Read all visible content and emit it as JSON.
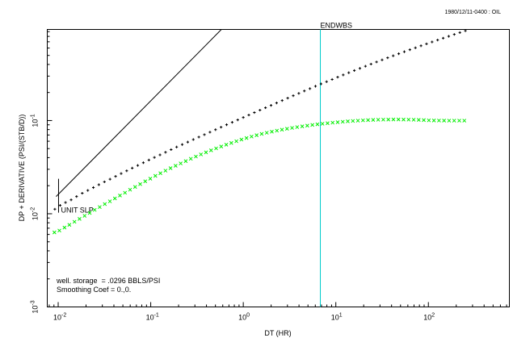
{
  "header": {
    "id_label": "1980/12/11-0400 : OIL"
  },
  "chart_data": {
    "type": "scatter",
    "title": "",
    "xlabel": "DT (HR)",
    "ylabel": "DP + DERIVATIVE (PSI/(STB/D))",
    "x_scale": "log",
    "y_scale": "log",
    "xlim": [
      0.00762,
      750
    ],
    "ylim": [
      0.001,
      0.95
    ],
    "x_ticks": [
      {
        "value": 0.01,
        "base": "10",
        "exp": "-2"
      },
      {
        "value": 0.1,
        "base": "10",
        "exp": "-1"
      },
      {
        "value": 1,
        "base": "10",
        "exp": "0"
      },
      {
        "value": 10,
        "base": "10",
        "exp": "1"
      },
      {
        "value": 100,
        "base": "10",
        "exp": "2"
      }
    ],
    "y_ticks": [
      {
        "value": 0.001,
        "base": "10",
        "exp": "-3"
      },
      {
        "value": 0.01,
        "base": "10",
        "exp": "-2"
      },
      {
        "value": 0.1,
        "base": "10",
        "exp": "-1"
      }
    ],
    "grid": false,
    "series": [
      {
        "marker": "+",
        "color": "#000000",
        "x": [
          0.0092,
          0.0105,
          0.012,
          0.0138,
          0.0158,
          0.0182,
          0.0209,
          0.024,
          0.0275,
          0.0316,
          0.0363,
          0.0417,
          0.0479,
          0.055,
          0.0631,
          0.0724,
          0.0832,
          0.0955,
          0.1096,
          0.1259,
          0.1445,
          0.166,
          0.1905,
          0.2188,
          0.2512,
          0.2884,
          0.3311,
          0.3802,
          0.4365,
          0.5012,
          0.5754,
          0.6607,
          0.7586,
          0.871,
          1,
          1.148,
          1.318,
          1.514,
          1.738,
          1.995,
          2.291,
          2.63,
          3.02,
          3.467,
          3.981,
          4.571,
          5.248,
          6.026,
          6.918,
          7.943,
          9.12,
          10.47,
          12.02,
          13.8,
          15.85,
          18.2,
          20.89,
          23.99,
          27.54,
          31.62,
          36.31,
          41.69,
          47.86,
          54.95,
          63.1,
          72.44,
          83.18,
          95.5,
          109.6,
          125.9,
          144.5,
          165.9,
          190.5,
          218.8,
          251.2
        ],
        "y": [
          0.0112,
          0.0123,
          0.0132,
          0.0141,
          0.0153,
          0.0166,
          0.0178,
          0.0191,
          0.0205,
          0.022,
          0.0235,
          0.0252,
          0.027,
          0.0289,
          0.0309,
          0.033,
          0.0353,
          0.0377,
          0.0402,
          0.0428,
          0.0457,
          0.0488,
          0.052,
          0.0553,
          0.0588,
          0.0626,
          0.0665,
          0.0706,
          0.0751,
          0.0798,
          0.0849,
          0.0902,
          0.0958,
          0.1017,
          0.108,
          0.1147,
          0.1218,
          0.1293,
          0.1372,
          0.1455,
          0.1545,
          0.1641,
          0.1742,
          0.1848,
          0.1958,
          0.2077,
          0.2202,
          0.2335,
          0.2473,
          0.2615,
          0.2764,
          0.2922,
          0.3087,
          0.326,
          0.3442,
          0.3633,
          0.3831,
          0.4038,
          0.4253,
          0.4478,
          0.4713,
          0.4957,
          0.5212,
          0.5477,
          0.5754,
          0.6041,
          0.6341,
          0.6652,
          0.6976,
          0.7312,
          0.7661,
          0.8024,
          0.8401,
          0.8792,
          0.9197
        ]
      },
      {
        "marker": "x",
        "color": "#00ee00",
        "x": [
          0.0091,
          0.0103,
          0.0117,
          0.0132,
          0.015,
          0.017,
          0.0193,
          0.0219,
          0.0248,
          0.0281,
          0.0319,
          0.0362,
          0.041,
          0.0465,
          0.0527,
          0.0598,
          0.0678,
          0.0769,
          0.0872,
          0.0989,
          0.1122,
          0.1272,
          0.1443,
          0.1637,
          0.1857,
          0.2106,
          0.2389,
          0.271,
          0.3074,
          0.3487,
          0.3955,
          0.4486,
          0.5088,
          0.5771,
          0.6546,
          0.7425,
          0.8422,
          0.9553,
          1.084,
          1.229,
          1.394,
          1.581,
          1.794,
          2.035,
          2.308,
          2.618,
          2.97,
          3.368,
          3.82,
          4.333,
          4.915,
          5.576,
          6.324,
          7.174,
          8.138,
          9.231,
          10.47,
          11.88,
          13.47,
          15.28,
          17.33,
          19.66,
          22.3,
          25.3,
          28.7,
          32.55,
          36.92,
          41.88,
          47.51,
          53.89,
          61.13,
          69.34,
          78.66,
          89.22,
          101.2,
          114.8,
          130.2,
          147.7,
          167.5,
          190,
          215.6,
          244.5
        ],
        "y": [
          0.0063,
          0.0066,
          0.0071,
          0.0076,
          0.0082,
          0.0088,
          0.0095,
          0.0102,
          0.011,
          0.0118,
          0.0127,
          0.0136,
          0.0146,
          0.0157,
          0.0168,
          0.0181,
          0.0194,
          0.0208,
          0.0223,
          0.0238,
          0.0255,
          0.0272,
          0.029,
          0.0308,
          0.0327,
          0.0347,
          0.0367,
          0.0389,
          0.0411,
          0.0433,
          0.0456,
          0.0479,
          0.0503,
          0.0527,
          0.0551,
          0.0575,
          0.06,
          0.0625,
          0.0649,
          0.0673,
          0.0696,
          0.0719,
          0.074,
          0.076,
          0.078,
          0.0799,
          0.0817,
          0.0834,
          0.0851,
          0.0867,
          0.0882,
          0.0897,
          0.0911,
          0.0924,
          0.0937,
          0.0949,
          0.096,
          0.0971,
          0.0981,
          0.099,
          0.0998,
          0.1005,
          0.1011,
          0.1016,
          0.102,
          0.1023,
          0.1025,
          0.1026,
          0.1026,
          0.1025,
          0.1023,
          0.102,
          0.1016,
          0.1011,
          0.1005,
          0.1002,
          0.1,
          0.0999,
          0.0998,
          0.0998,
          0.0998,
          0.0998
        ]
      }
    ],
    "unit_slope": {
      "label": "UNIT SLP",
      "x": [
        0.0095,
        0.58
      ],
      "y": [
        0.0153,
        0.95
      ],
      "color": "#000000"
    },
    "marker_line": {
      "label": "ENDWBS",
      "x": 6.8,
      "color": "#00cccc"
    },
    "annotations": [
      "well. storage  = .0296 BBLS/PSI",
      "Smoothing Coef = 0.,0."
    ]
  }
}
